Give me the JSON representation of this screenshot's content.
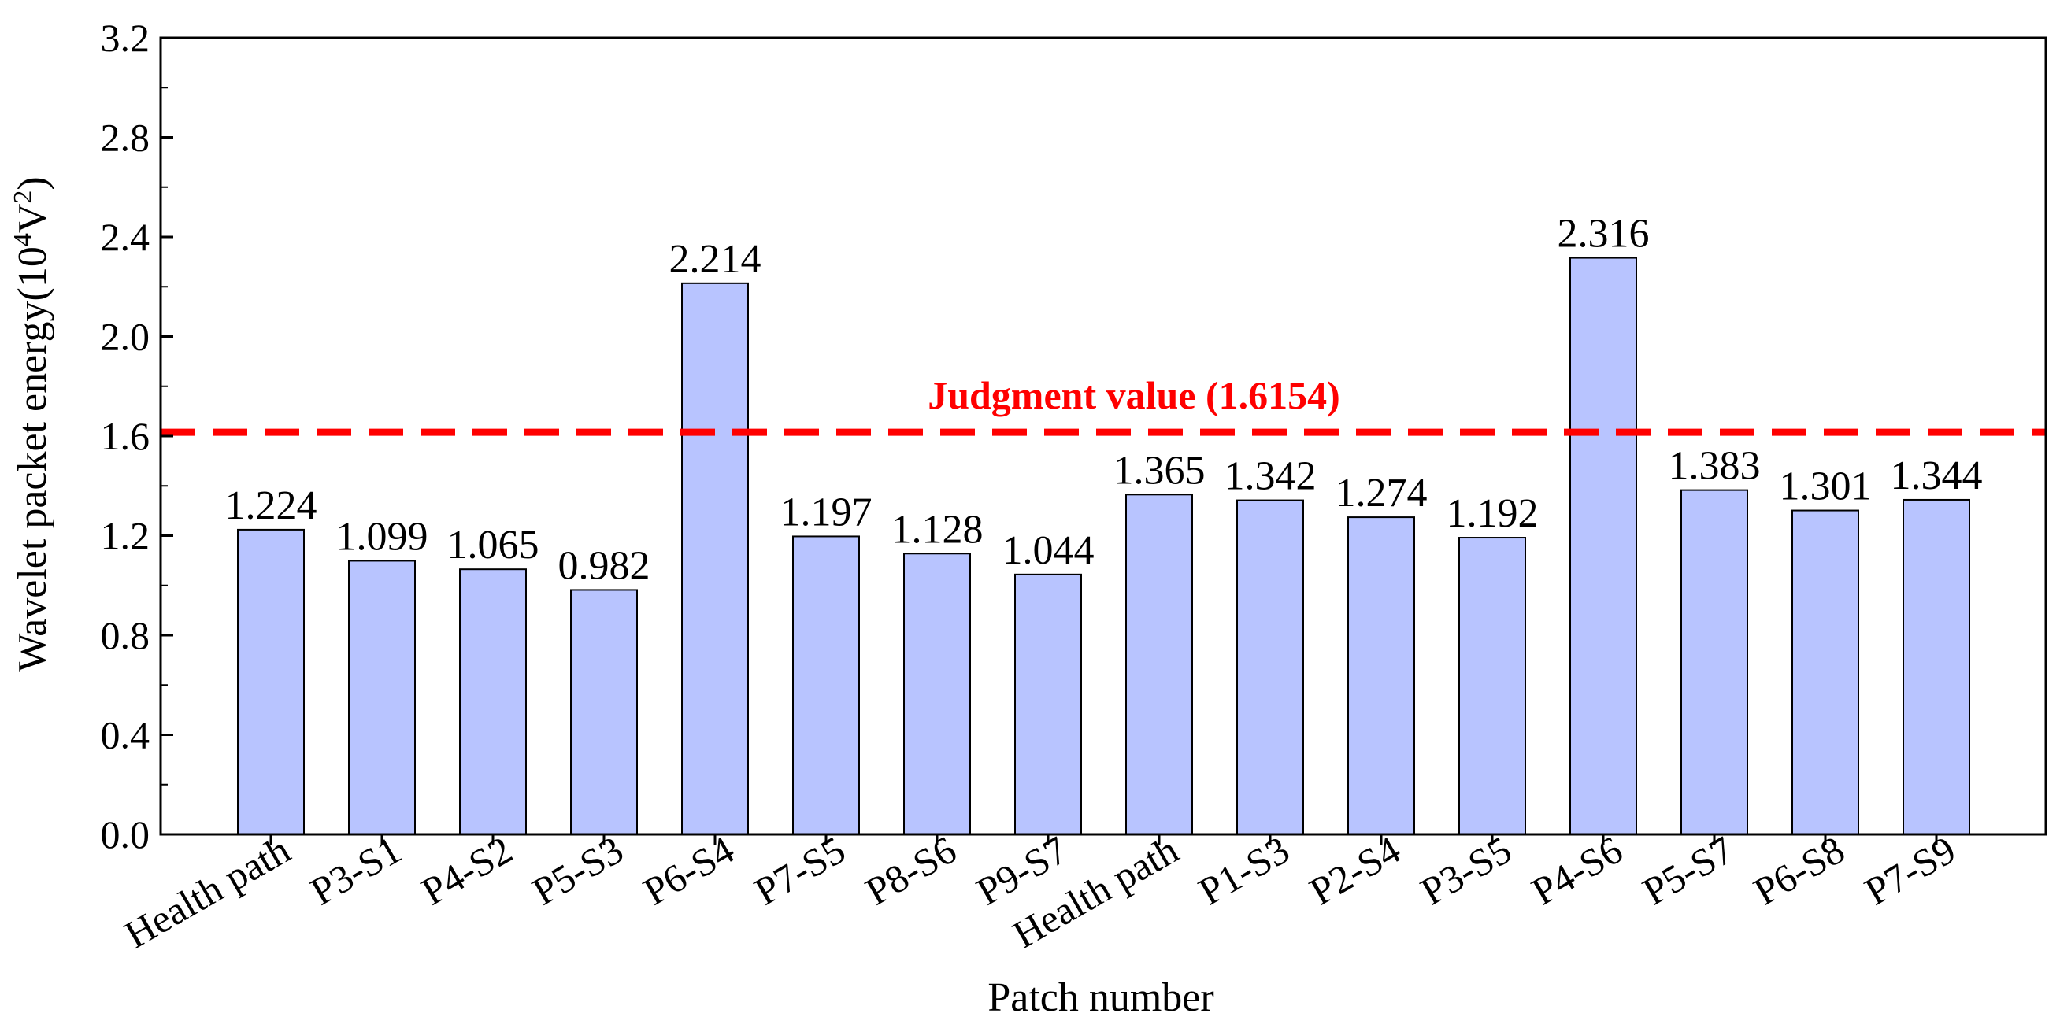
{
  "chart_data": {
    "type": "bar",
    "categories": [
      "Health path",
      "P3-S1",
      "P4-S2",
      "P5-S3",
      "P6-S4",
      "P7-S5",
      "P8-S6",
      "P9-S7",
      "Health path",
      "P1-S3",
      "P2-S4",
      "P3-S5",
      "P4-S6",
      "P5-S7",
      "P6-S8",
      "P7-S9"
    ],
    "values": [
      1.224,
      1.099,
      1.065,
      0.982,
      2.214,
      1.197,
      1.128,
      1.044,
      1.365,
      1.342,
      1.274,
      1.192,
      2.316,
      1.383,
      1.301,
      1.344
    ],
    "data_labels": [
      "1.224",
      "1.099",
      "1.065",
      "0.982",
      "2.214",
      "1.197",
      "1.128",
      "1.044",
      "1.365",
      "1.342",
      "1.274",
      "1.192",
      "2.316",
      "1.383",
      "1.301",
      "1.344"
    ],
    "xlabel": "Patch number",
    "ylabel_main": "Wavelet packet energy(10",
    "ylabel_sup1": "4",
    "ylabel_mid": "V",
    "ylabel_sup2": "2",
    "ylabel_end": ")",
    "ylim": [
      0,
      3.2
    ],
    "yticks": [
      "0.0",
      "0.4",
      "0.8",
      "1.2",
      "1.6",
      "2.0",
      "2.4",
      "2.8",
      "3.2"
    ],
    "threshold": {
      "value": 1.6154,
      "label": "Judgment value (1.6154)",
      "color": "#ff0000"
    },
    "bar_color": "#b8c4ff",
    "grid": false
  }
}
